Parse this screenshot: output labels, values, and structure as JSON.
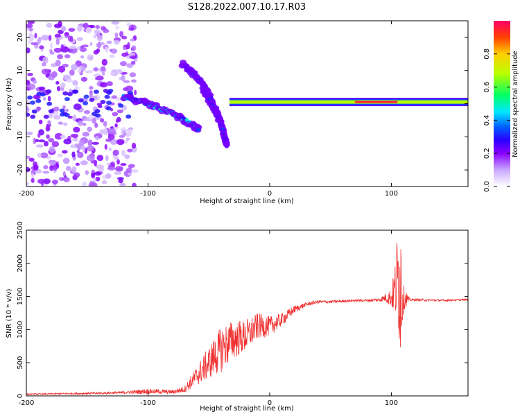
{
  "figure_title": "S128.2022.007.10.17.R03",
  "chart_data": [
    {
      "type": "heatmap",
      "panel": "spectrogram",
      "xlabel": "Height of straight line (km)",
      "ylabel": "Frequency (Hz)",
      "xlim": [
        -200,
        163
      ],
      "ylim": [
        -25,
        25
      ],
      "x_ticks": [
        -200,
        -100,
        0,
        100
      ],
      "y_ticks": [
        -20,
        -10,
        0,
        10,
        20
      ],
      "colorbar": {
        "label": "Normalized spectral amplitude",
        "range": [
          0,
          1
        ],
        "ticks": [
          0.0,
          0.2,
          0.4,
          0.6,
          0.8
        ],
        "colormap": [
          "#ffffff",
          "#c9a8ff",
          "#8a00ff",
          "#2a00ff",
          "#0060ff",
          "#00e6ff",
          "#00ff66",
          "#b8ff00",
          "#ffd000",
          "#ff4000",
          "#ff0066"
        ]
      },
      "features": [
        {
          "name": "noise",
          "x": [
            -200,
            -110
          ],
          "freq_spread": 25,
          "amplitude": 0.15
        },
        {
          "name": "main trace",
          "points": [
            [
              -120,
              2
            ],
            [
              -100,
              0
            ],
            [
              -80,
              -3
            ],
            [
              -65,
              -6
            ],
            [
              -58,
              -8
            ]
          ],
          "amplitude": 0.45
        },
        {
          "name": "upper descending branch",
          "points": [
            [
              -72,
              12
            ],
            [
              -60,
              8
            ],
            [
              -50,
              3
            ],
            [
              -42,
              -4
            ],
            [
              -35,
              -12
            ]
          ],
          "amplitude": 0.3
        },
        {
          "name": "lower descending branch",
          "points": [
            [
              -55,
              4
            ],
            [
              -48,
              0
            ],
            [
              -40,
              -6
            ],
            [
              -35,
              -13
            ]
          ],
          "amplitude": 0.3
        },
        {
          "name": "carrier line",
          "x": [
            -33,
            163
          ],
          "freq": 0.5,
          "amplitude": 0.7
        },
        {
          "name": "carrier peak",
          "x": [
            70,
            105
          ],
          "freq": 0.5,
          "amplitude": 0.95
        }
      ]
    },
    {
      "type": "line",
      "panel": "snr",
      "xlabel": "Height of straight line (km)",
      "ylabel": "SNR (10 * v/v)",
      "xlim": [
        -200,
        163
      ],
      "ylim": [
        0,
        2500
      ],
      "x_ticks": [
        -200,
        -100,
        0,
        100
      ],
      "y_ticks": [
        0,
        500,
        1000,
        1500,
        2000,
        2500
      ],
      "color": "#f03030",
      "series": [
        {
          "x": [
            -200,
            -180,
            -160,
            -140,
            -120,
            -100,
            -80,
            -70,
            -60,
            -50,
            -40,
            -30,
            -20,
            -10,
            0,
            10,
            20,
            30,
            40,
            50,
            60,
            70,
            80,
            90,
            95,
            100,
            103,
            106,
            108,
            110,
            115,
            120,
            140,
            160,
            163
          ],
          "y": [
            25,
            30,
            35,
            40,
            50,
            70,
            60,
            100,
            300,
            500,
            700,
            850,
            900,
            1050,
            1050,
            1150,
            1300,
            1380,
            1420,
            1420,
            1430,
            1440,
            1440,
            1450,
            1480,
            1480,
            1600,
            1800,
            1700,
            1480,
            1450,
            1450,
            1440,
            1450,
            1450
          ],
          "noise_amplitude": [
            10,
            10,
            15,
            15,
            20,
            40,
            30,
            50,
            150,
            250,
            350,
            300,
            250,
            200,
            150,
            100,
            60,
            30,
            25,
            20,
            20,
            20,
            20,
            30,
            60,
            150,
            400,
            1000,
            1200,
            200,
            20,
            20,
            15,
            15,
            15
          ]
        }
      ]
    }
  ]
}
